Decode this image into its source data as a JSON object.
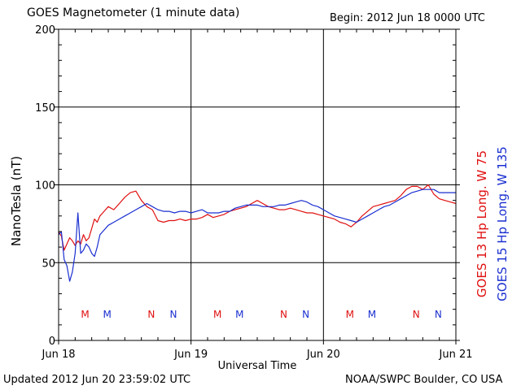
{
  "header": {
    "title": "GOES Magnetometer (1 minute data)",
    "begin": "Begin:  2012 Jun 18 0000 UTC"
  },
  "footer": {
    "updated": "Updated 2012 Jun 20 23:59:02 UTC",
    "credit": "NOAA/SWPC Boulder, CO USA"
  },
  "colors": {
    "goes13": "#e01010",
    "goes15": "#1a2fd0",
    "axis": "#000000"
  },
  "chart_data": {
    "type": "line",
    "xlabel": "Universal Time",
    "ylabel": "NanoTesla (nT)",
    "ylim": [
      0,
      200
    ],
    "xlim": [
      0,
      72
    ],
    "x_unit": "hours since Jun 18 0000 UTC",
    "yticks": [
      0,
      50,
      100,
      150,
      200
    ],
    "xticks": [
      {
        "x": 0,
        "label": "Jun 18"
      },
      {
        "x": 24,
        "label": "Jun 19"
      },
      {
        "x": 48,
        "label": "Jun 20"
      },
      {
        "x": 72,
        "label": "Jun 21"
      }
    ],
    "grid": true,
    "legend_placement": "right, vertical",
    "series": [
      {
        "name": "GOES 13 Hp  Long. W 75",
        "color": "#e01010",
        "points": [
          [
            0,
            70
          ],
          [
            0.5,
            67
          ],
          [
            1,
            58
          ],
          [
            1.5,
            62
          ],
          [
            2,
            66
          ],
          [
            2.5,
            64
          ],
          [
            3,
            61
          ],
          [
            3.5,
            64
          ],
          [
            4,
            62
          ],
          [
            4.5,
            68
          ],
          [
            5,
            64
          ],
          [
            5.5,
            66
          ],
          [
            6,
            72
          ],
          [
            6.5,
            78
          ],
          [
            7,
            76
          ],
          [
            7.5,
            80
          ],
          [
            8,
            82
          ],
          [
            9,
            86
          ],
          [
            10,
            84
          ],
          [
            11,
            88
          ],
          [
            12,
            92
          ],
          [
            13,
            95
          ],
          [
            14,
            96
          ],
          [
            15,
            90
          ],
          [
            16,
            86
          ],
          [
            17,
            84
          ],
          [
            18,
            77
          ],
          [
            19,
            76
          ],
          [
            20,
            77
          ],
          [
            21,
            77
          ],
          [
            22,
            78
          ],
          [
            23,
            77
          ],
          [
            24,
            78
          ],
          [
            25,
            78
          ],
          [
            26,
            79
          ],
          [
            27,
            81
          ],
          [
            28,
            79
          ],
          [
            29,
            80
          ],
          [
            30,
            81
          ],
          [
            31,
            83
          ],
          [
            32,
            84
          ],
          [
            33,
            85
          ],
          [
            34,
            86
          ],
          [
            35,
            88
          ],
          [
            36,
            90
          ],
          [
            37,
            88
          ],
          [
            38,
            86
          ],
          [
            39,
            85
          ],
          [
            40,
            84
          ],
          [
            41,
            84
          ],
          [
            42,
            85
          ],
          [
            43,
            84
          ],
          [
            44,
            83
          ],
          [
            45,
            82
          ],
          [
            46,
            82
          ],
          [
            47,
            81
          ],
          [
            48,
            80
          ],
          [
            49,
            79
          ],
          [
            50,
            78
          ],
          [
            51,
            76
          ],
          [
            52,
            75
          ],
          [
            53,
            73
          ],
          [
            54,
            76
          ],
          [
            55,
            80
          ],
          [
            56,
            83
          ],
          [
            57,
            86
          ],
          [
            58,
            87
          ],
          [
            59,
            88
          ],
          [
            60,
            89
          ],
          [
            61,
            90
          ],
          [
            62,
            93
          ],
          [
            63,
            97
          ],
          [
            64,
            99
          ],
          [
            65,
            99
          ],
          [
            66,
            97
          ],
          [
            67,
            100
          ],
          [
            68,
            94
          ],
          [
            69,
            91
          ],
          [
            70,
            90
          ],
          [
            71,
            89
          ],
          [
            72,
            88
          ]
        ]
      },
      {
        "name": "GOES 15 Hp  Long. W 135",
        "color": "#1a2fd0",
        "points": [
          [
            0,
            68
          ],
          [
            0.5,
            70
          ],
          [
            1,
            52
          ],
          [
            1.5,
            48
          ],
          [
            2,
            38
          ],
          [
            2.5,
            44
          ],
          [
            3,
            56
          ],
          [
            3.5,
            82
          ],
          [
            4,
            56
          ],
          [
            4.5,
            58
          ],
          [
            5,
            62
          ],
          [
            5.5,
            60
          ],
          [
            6,
            56
          ],
          [
            6.5,
            54
          ],
          [
            7,
            60
          ],
          [
            7.5,
            68
          ],
          [
            8,
            70
          ],
          [
            9,
            74
          ],
          [
            10,
            76
          ],
          [
            11,
            78
          ],
          [
            12,
            80
          ],
          [
            13,
            82
          ],
          [
            14,
            84
          ],
          [
            15,
            86
          ],
          [
            16,
            88
          ],
          [
            17,
            86
          ],
          [
            18,
            84
          ],
          [
            19,
            83
          ],
          [
            20,
            83
          ],
          [
            21,
            82
          ],
          [
            22,
            83
          ],
          [
            23,
            83
          ],
          [
            24,
            82
          ],
          [
            25,
            83
          ],
          [
            26,
            84
          ],
          [
            27,
            82
          ],
          [
            28,
            82
          ],
          [
            29,
            82
          ],
          [
            30,
            83
          ],
          [
            31,
            83
          ],
          [
            32,
            85
          ],
          [
            33,
            86
          ],
          [
            34,
            87
          ],
          [
            35,
            87
          ],
          [
            36,
            87
          ],
          [
            37,
            86
          ],
          [
            38,
            86
          ],
          [
            39,
            86
          ],
          [
            40,
            87
          ],
          [
            41,
            87
          ],
          [
            42,
            88
          ],
          [
            43,
            89
          ],
          [
            44,
            90
          ],
          [
            45,
            89
          ],
          [
            46,
            87
          ],
          [
            47,
            86
          ],
          [
            48,
            84
          ],
          [
            49,
            82
          ],
          [
            50,
            80
          ],
          [
            51,
            79
          ],
          [
            52,
            78
          ],
          [
            53,
            77
          ],
          [
            54,
            76
          ],
          [
            55,
            78
          ],
          [
            56,
            80
          ],
          [
            57,
            82
          ],
          [
            58,
            84
          ],
          [
            59,
            86
          ],
          [
            60,
            87
          ],
          [
            61,
            89
          ],
          [
            62,
            91
          ],
          [
            63,
            93
          ],
          [
            64,
            95
          ],
          [
            65,
            96
          ],
          [
            66,
            97
          ],
          [
            67,
            97
          ],
          [
            68,
            97
          ],
          [
            69,
            95
          ],
          [
            70,
            95
          ],
          [
            71,
            95
          ],
          [
            72,
            95
          ]
        ]
      }
    ],
    "markers": [
      {
        "x": 4.8,
        "label": "M",
        "color": "#e01010"
      },
      {
        "x": 8.8,
        "label": "M",
        "color": "#1a2fd0"
      },
      {
        "x": 16.8,
        "label": "N",
        "color": "#e01010"
      },
      {
        "x": 20.8,
        "label": "N",
        "color": "#1a2fd0"
      },
      {
        "x": 28.8,
        "label": "M",
        "color": "#e01010"
      },
      {
        "x": 32.8,
        "label": "M",
        "color": "#1a2fd0"
      },
      {
        "x": 40.8,
        "label": "N",
        "color": "#e01010"
      },
      {
        "x": 44.8,
        "label": "N",
        "color": "#1a2fd0"
      },
      {
        "x": 52.8,
        "label": "M",
        "color": "#e01010"
      },
      {
        "x": 56.8,
        "label": "M",
        "color": "#1a2fd0"
      },
      {
        "x": 64.8,
        "label": "N",
        "color": "#e01010"
      },
      {
        "x": 68.8,
        "label": "N",
        "color": "#1a2fd0"
      }
    ]
  }
}
